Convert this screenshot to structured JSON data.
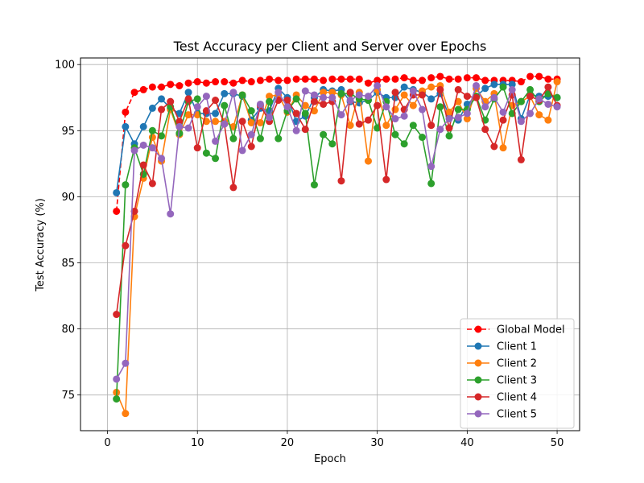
{
  "chart_data": {
    "type": "line",
    "title": "Test Accuracy per Client and Server over Epochs",
    "xlabel": "Epoch",
    "ylabel": "Test Accuracy (%)",
    "xlim": [
      -3,
      52.5
    ],
    "ylim": [
      72.3,
      100.5
    ],
    "xticks": [
      0,
      10,
      20,
      30,
      40,
      50
    ],
    "yticks": [
      75,
      80,
      85,
      90,
      95,
      100
    ],
    "grid": true,
    "legend_position": "lower-right",
    "x": [
      1,
      2,
      3,
      4,
      5,
      6,
      7,
      8,
      9,
      10,
      11,
      12,
      13,
      14,
      15,
      16,
      17,
      18,
      19,
      20,
      21,
      22,
      23,
      24,
      25,
      26,
      27,
      28,
      29,
      30,
      31,
      32,
      33,
      34,
      35,
      36,
      37,
      38,
      39,
      40,
      41,
      42,
      43,
      44,
      45,
      46,
      47,
      48,
      49,
      50
    ],
    "series": [
      {
        "name": "Global Model",
        "color": "#ff0000",
        "dashed": true,
        "values": [
          88.9,
          96.4,
          97.9,
          98.1,
          98.3,
          98.3,
          98.5,
          98.4,
          98.6,
          98.7,
          98.6,
          98.7,
          98.7,
          98.6,
          98.8,
          98.7,
          98.8,
          98.9,
          98.8,
          98.8,
          98.9,
          98.9,
          98.9,
          98.8,
          98.9,
          98.9,
          98.9,
          98.9,
          98.6,
          98.8,
          98.9,
          98.9,
          99.0,
          98.8,
          98.8,
          99.0,
          99.1,
          98.9,
          98.9,
          99.0,
          99.0,
          98.8,
          98.8,
          98.8,
          98.8,
          98.7,
          99.1,
          99.1,
          98.9,
          98.9
        ]
      },
      {
        "name": "Client 1",
        "color": "#1f77b4",
        "dashed": false,
        "values": [
          90.3,
          95.3,
          94.0,
          95.3,
          96.7,
          97.4,
          96.7,
          96.3,
          97.9,
          96.3,
          96.3,
          96.3,
          97.8,
          97.8,
          97.6,
          95.8,
          96.7,
          96.5,
          98.2,
          97.5,
          95.7,
          96.1,
          97.5,
          98.1,
          98.0,
          98.1,
          97.2,
          97.1,
          97.3,
          97.9,
          97.5,
          97.5,
          98.3,
          98.1,
          97.9,
          97.4,
          97.8,
          96.1,
          95.8,
          97.0,
          97.6,
          98.2,
          98.5,
          98.5,
          98.5,
          95.9,
          97.7,
          97.6,
          97.6,
          97.5
        ]
      },
      {
        "name": "Client 2",
        "color": "#ff7f0e",
        "dashed": false,
        "values": [
          75.2,
          73.6,
          88.5,
          91.4,
          94.5,
          92.7,
          96.6,
          94.7,
          96.2,
          96.2,
          95.7,
          95.7,
          95.7,
          95.3,
          97.7,
          95.6,
          95.6,
          97.6,
          97.7,
          96.4,
          97.7,
          96.9,
          96.5,
          97.9,
          97.9,
          97.7,
          95.4,
          97.9,
          92.7,
          98.1,
          95.4,
          96.6,
          97.7,
          96.9,
          98.0,
          98.3,
          98.4,
          96.4,
          97.2,
          95.9,
          98.2,
          97.2,
          97.8,
          93.7,
          96.9,
          97.2,
          97.6,
          96.2,
          95.8,
          98.7
        ]
      },
      {
        "name": "Client 3",
        "color": "#2ca02c",
        "dashed": false,
        "values": [
          74.7,
          90.9,
          93.7,
          91.7,
          95.0,
          94.6,
          96.8,
          94.8,
          97.2,
          97.4,
          93.3,
          92.9,
          96.9,
          94.4,
          97.7,
          96.5,
          94.4,
          97.2,
          94.4,
          96.5,
          97.4,
          96.3,
          90.9,
          94.7,
          94.0,
          97.8,
          97.8,
          97.4,
          97.3,
          95.2,
          97.2,
          94.7,
          94.0,
          95.4,
          94.5,
          91.0,
          96.8,
          94.6,
          96.6,
          96.6,
          97.6,
          95.8,
          97.4,
          98.3,
          96.3,
          97.2,
          98.1,
          97.2,
          97.8,
          97.5
        ]
      },
      {
        "name": "Client 4",
        "color": "#d62728",
        "dashed": false,
        "values": [
          81.1,
          86.3,
          88.9,
          92.4,
          91.0,
          96.6,
          97.2,
          95.7,
          97.4,
          93.7,
          96.5,
          97.3,
          95.5,
          90.7,
          95.7,
          93.8,
          96.9,
          95.7,
          97.3,
          97.3,
          96.3,
          95.1,
          97.2,
          97.0,
          97.2,
          91.2,
          97.9,
          95.5,
          95.8,
          96.9,
          91.3,
          97.9,
          96.6,
          97.7,
          97.7,
          95.4,
          98.1,
          95.2,
          98.1,
          97.6,
          97.5,
          95.1,
          93.8,
          95.8,
          97.7,
          92.8,
          97.6,
          97.3,
          98.3,
          96.9
        ]
      },
      {
        "name": "Client 5",
        "color": "#9467bd",
        "dashed": false,
        "values": [
          76.2,
          77.4,
          93.5,
          93.9,
          93.7,
          92.9,
          88.7,
          95.3,
          95.2,
          96.8,
          97.6,
          94.2,
          95.5,
          97.9,
          93.5,
          94.7,
          97.0,
          96.0,
          97.9,
          96.8,
          95.0,
          98.0,
          97.7,
          97.5,
          97.5,
          96.2,
          97.3,
          97.7,
          97.6,
          98.4,
          96.8,
          95.9,
          96.1,
          98.0,
          96.6,
          92.3,
          95.1,
          95.9,
          96.0,
          96.3,
          98.4,
          96.8,
          97.5,
          96.4,
          98.1,
          95.7,
          96.3,
          97.4,
          97.0,
          96.8
        ]
      }
    ]
  }
}
